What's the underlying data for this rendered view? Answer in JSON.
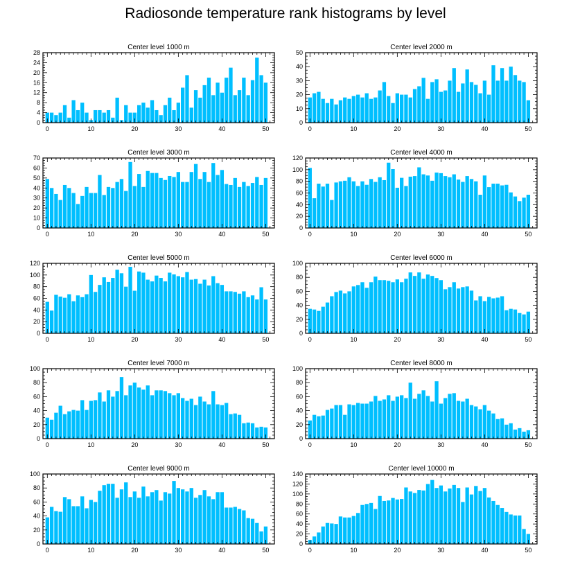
{
  "figure": {
    "title": "Radiosonde temperature rank histograms by level"
  },
  "colors": {
    "bar": "#00bfff",
    "axis": "#000000",
    "background": "#ffffff"
  },
  "chart_data": [
    {
      "type": "bar",
      "title": "Center level 1000 m",
      "xlim": [
        -1,
        52
      ],
      "xticks": [
        0,
        10,
        20,
        30,
        40,
        50
      ],
      "ylim": [
        0,
        28
      ],
      "yticks": [
        0,
        4,
        8,
        12,
        16,
        20,
        24,
        28
      ],
      "values": [
        4,
        4,
        3,
        4,
        7,
        2,
        9,
        5,
        8,
        4,
        1,
        5,
        5,
        4,
        5,
        2,
        10,
        1,
        7,
        4,
        4,
        7,
        8,
        6,
        9,
        5,
        3,
        7,
        10,
        5,
        8,
        14,
        19,
        6,
        13,
        10,
        15,
        18,
        11,
        16,
        12,
        18,
        22,
        11,
        13,
        18,
        11,
        17,
        26,
        19,
        16
      ]
    },
    {
      "type": "bar",
      "title": "Center level 2000 m",
      "xlim": [
        -1,
        52
      ],
      "xticks": [
        0,
        10,
        20,
        30,
        40,
        50
      ],
      "ylim": [
        0,
        50
      ],
      "yticks": [
        0,
        10,
        20,
        30,
        40,
        50
      ],
      "values": [
        18,
        21,
        22,
        17,
        14,
        17,
        13,
        16,
        18,
        17,
        19,
        20,
        18,
        21,
        17,
        18,
        23,
        29,
        19,
        14,
        21,
        20,
        20,
        18,
        24,
        26,
        32,
        17,
        29,
        31,
        22,
        23,
        30,
        39,
        22,
        28,
        38,
        29,
        27,
        21,
        30,
        20,
        41,
        30,
        39,
        30,
        40,
        34,
        30,
        29,
        16
      ]
    },
    {
      "type": "bar",
      "title": "Center level 3000 m",
      "xlim": [
        -1,
        52
      ],
      "xticks": [
        0,
        10,
        20,
        30,
        40,
        50
      ],
      "ylim": [
        0,
        70
      ],
      "yticks": [
        0,
        10,
        20,
        30,
        40,
        50,
        60,
        70
      ],
      "values": [
        49,
        40,
        34,
        28,
        43,
        40,
        35,
        24,
        32,
        41,
        35,
        35,
        53,
        33,
        41,
        40,
        46,
        49,
        37,
        66,
        42,
        54,
        41,
        57,
        55,
        55,
        50,
        48,
        52,
        51,
        56,
        46,
        46,
        56,
        64,
        49,
        56,
        46,
        65,
        53,
        58,
        44,
        43,
        50,
        41,
        46,
        42,
        45,
        51,
        43,
        50
      ]
    },
    {
      "type": "bar",
      "title": "Center level 4000 m",
      "xlim": [
        -1,
        52
      ],
      "xticks": [
        0,
        10,
        20,
        30,
        40,
        50
      ],
      "ylim": [
        0,
        120
      ],
      "yticks": [
        0,
        20,
        40,
        60,
        80,
        100,
        120
      ],
      "values": [
        103,
        51,
        76,
        71,
        76,
        48,
        78,
        80,
        81,
        87,
        80,
        72,
        80,
        74,
        84,
        79,
        87,
        82,
        112,
        101,
        69,
        86,
        72,
        88,
        89,
        104,
        92,
        90,
        81,
        95,
        94,
        89,
        87,
        92,
        83,
        79,
        89,
        84,
        80,
        57,
        90,
        70,
        76,
        76,
        73,
        74,
        61,
        54,
        46,
        52,
        57
      ]
    },
    {
      "type": "bar",
      "title": "Center level 5000 m",
      "xlim": [
        -1,
        52
      ],
      "xticks": [
        0,
        10,
        20,
        30,
        40,
        50
      ],
      "ylim": [
        0,
        120
      ],
      "yticks": [
        0,
        20,
        40,
        60,
        80,
        100,
        120
      ],
      "values": [
        54,
        39,
        66,
        63,
        61,
        67,
        55,
        65,
        62,
        67,
        100,
        71,
        83,
        96,
        88,
        95,
        109,
        103,
        80,
        114,
        73,
        106,
        104,
        92,
        89,
        99,
        95,
        89,
        104,
        101,
        98,
        96,
        105,
        92,
        93,
        85,
        92,
        82,
        98,
        86,
        83,
        72,
        72,
        71,
        68,
        72,
        62,
        65,
        58,
        79,
        58
      ]
    },
    {
      "type": "bar",
      "title": "Center level 6000 m",
      "xlim": [
        -1,
        52
      ],
      "xticks": [
        0,
        10,
        20,
        30,
        40,
        50
      ],
      "ylim": [
        0,
        100
      ],
      "yticks": [
        0,
        20,
        40,
        60,
        80,
        100
      ],
      "values": [
        35,
        34,
        32,
        38,
        44,
        53,
        59,
        61,
        57,
        60,
        67,
        69,
        73,
        65,
        73,
        81,
        76,
        76,
        75,
        73,
        77,
        73,
        78,
        87,
        82,
        87,
        78,
        84,
        82,
        79,
        76,
        63,
        66,
        73,
        64,
        66,
        67,
        61,
        47,
        53,
        46,
        52,
        50,
        51,
        53,
        33,
        35,
        34,
        29,
        27,
        31
      ]
    },
    {
      "type": "bar",
      "title": "Center level 7000 m",
      "xlim": [
        -1,
        52
      ],
      "xticks": [
        0,
        10,
        20,
        30,
        40,
        50
      ],
      "ylim": [
        0,
        100
      ],
      "yticks": [
        0,
        20,
        40,
        60,
        80,
        100
      ],
      "values": [
        30,
        27,
        37,
        47,
        35,
        39,
        41,
        40,
        55,
        41,
        54,
        55,
        66,
        53,
        69,
        60,
        68,
        88,
        62,
        76,
        80,
        73,
        70,
        76,
        62,
        69,
        69,
        68,
        65,
        62,
        65,
        58,
        54,
        57,
        48,
        60,
        53,
        49,
        68,
        49,
        48,
        51,
        35,
        36,
        34,
        22,
        23,
        22,
        16,
        17,
        16
      ]
    },
    {
      "type": "bar",
      "title": "Center level 8000 m",
      "xlim": [
        -1,
        52
      ],
      "xticks": [
        0,
        10,
        20,
        30,
        40,
        50
      ],
      "ylim": [
        0,
        100
      ],
      "yticks": [
        0,
        20,
        40,
        60,
        80,
        100
      ],
      "values": [
        26,
        34,
        32,
        33,
        41,
        43,
        48,
        48,
        34,
        49,
        48,
        51,
        50,
        50,
        53,
        61,
        54,
        56,
        62,
        54,
        60,
        62,
        58,
        80,
        57,
        64,
        69,
        61,
        53,
        82,
        50,
        58,
        64,
        65,
        54,
        53,
        57,
        48,
        46,
        42,
        48,
        40,
        36,
        28,
        29,
        20,
        22,
        13,
        15,
        10,
        12
      ]
    },
    {
      "type": "bar",
      "title": "Center level 9000 m",
      "xlim": [
        -1,
        52
      ],
      "xticks": [
        0,
        10,
        20,
        30,
        40,
        50
      ],
      "ylim": [
        0,
        100
      ],
      "yticks": [
        0,
        20,
        40,
        60,
        80,
        100
      ],
      "values": [
        38,
        53,
        47,
        46,
        67,
        64,
        54,
        54,
        68,
        51,
        63,
        60,
        76,
        84,
        86,
        86,
        66,
        78,
        88,
        67,
        75,
        66,
        82,
        68,
        74,
        77,
        62,
        74,
        72,
        90,
        80,
        78,
        75,
        80,
        66,
        70,
        77,
        68,
        64,
        74,
        74,
        52,
        52,
        53,
        50,
        48,
        37,
        36,
        30,
        18,
        25
      ]
    },
    {
      "type": "bar",
      "title": "Center level 10000 m",
      "xlim": [
        -1,
        52
      ],
      "xticks": [
        0,
        10,
        20,
        30,
        40,
        50
      ],
      "ylim": [
        0,
        140
      ],
      "yticks": [
        0,
        20,
        40,
        60,
        80,
        100,
        120,
        140
      ],
      "values": [
        8,
        15,
        23,
        35,
        42,
        41,
        40,
        55,
        53,
        53,
        56,
        62,
        78,
        80,
        82,
        70,
        96,
        86,
        87,
        92,
        89,
        90,
        113,
        105,
        102,
        108,
        107,
        120,
        128,
        112,
        117,
        105,
        111,
        118,
        112,
        84,
        113,
        99,
        116,
        106,
        112,
        93,
        86,
        78,
        72,
        64,
        59,
        57,
        57,
        30,
        20
      ]
    }
  ]
}
